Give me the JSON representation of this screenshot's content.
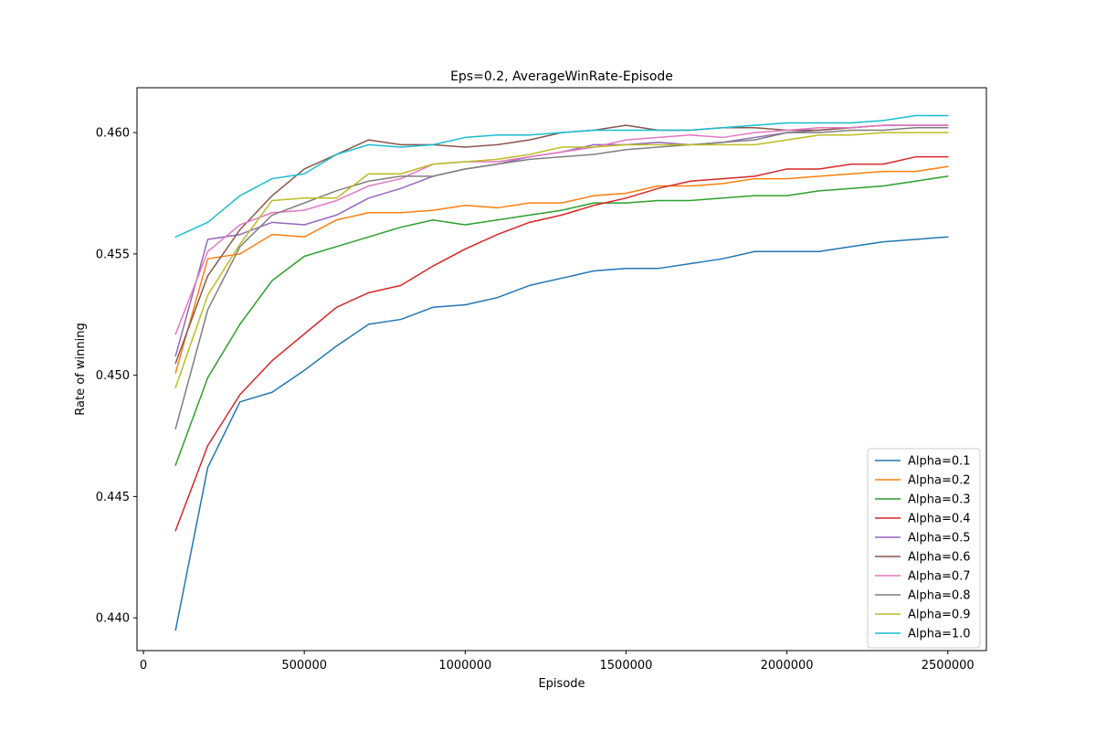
{
  "chart_data": {
    "type": "line",
    "title": "Eps=0.2, AverageWinRate-Episode",
    "xlabel": "Episode",
    "ylabel": "Rate of winning",
    "xlim": [
      -20000,
      2620000
    ],
    "ylim": [
      0.43865,
      0.46185
    ],
    "xticks": [
      0,
      500000,
      1000000,
      1500000,
      2000000,
      2500000
    ],
    "xtick_labels": [
      "0",
      "500000",
      "1000000",
      "1500000",
      "2000000",
      "2500000"
    ],
    "yticks": [
      0.44,
      0.445,
      0.45,
      0.455,
      0.46
    ],
    "ytick_labels": [
      "0.440",
      "0.445",
      "0.450",
      "0.455",
      "0.460"
    ],
    "grid": false,
    "legend_position": "lower right",
    "x": [
      100000,
      200000,
      300000,
      400000,
      500000,
      600000,
      700000,
      800000,
      900000,
      1000000,
      1100000,
      1200000,
      1300000,
      1400000,
      1500000,
      1600000,
      1700000,
      1800000,
      1900000,
      2000000,
      2100000,
      2200000,
      2300000,
      2400000,
      2500000
    ],
    "series": [
      {
        "name": "Alpha=0.1",
        "color": "#1f77b4",
        "values": [
          0.4395,
          0.4462,
          0.4489,
          0.4493,
          0.4502,
          0.4512,
          0.4521,
          0.4523,
          0.4528,
          0.4529,
          0.4532,
          0.4537,
          0.454,
          0.4543,
          0.4544,
          0.4544,
          0.4546,
          0.4548,
          0.4551,
          0.4551,
          0.4551,
          0.4553,
          0.4555,
          0.4556,
          0.4557
        ]
      },
      {
        "name": "Alpha=0.2",
        "color": "#ff7f0e",
        "values": [
          0.4501,
          0.4548,
          0.455,
          0.4558,
          0.4557,
          0.4564,
          0.4567,
          0.4567,
          0.4568,
          0.457,
          0.4569,
          0.4571,
          0.4571,
          0.4574,
          0.4575,
          0.4578,
          0.4578,
          0.4579,
          0.4581,
          0.4581,
          0.4582,
          0.4583,
          0.4584,
          0.4584,
          0.4586
        ]
      },
      {
        "name": "Alpha=0.3",
        "color": "#2ca02c",
        "values": [
          0.4463,
          0.4499,
          0.4521,
          0.4539,
          0.4549,
          0.4553,
          0.4557,
          0.4561,
          0.4564,
          0.4562,
          0.4564,
          0.4566,
          0.4568,
          0.4571,
          0.4571,
          0.4572,
          0.4572,
          0.4573,
          0.4574,
          0.4574,
          0.4576,
          0.4577,
          0.4578,
          0.458,
          0.4582
        ]
      },
      {
        "name": "Alpha=0.4",
        "color": "#d62728",
        "values": [
          0.4436,
          0.4471,
          0.4492,
          0.4506,
          0.4517,
          0.4528,
          0.4534,
          0.4537,
          0.4545,
          0.4552,
          0.4558,
          0.4563,
          0.4566,
          0.457,
          0.4573,
          0.4577,
          0.458,
          0.4581,
          0.4582,
          0.4585,
          0.4585,
          0.4587,
          0.4587,
          0.459,
          0.459
        ]
      },
      {
        "name": "Alpha=0.5",
        "color": "#9467bd",
        "values": [
          0.4508,
          0.4556,
          0.4558,
          0.4563,
          0.4562,
          0.4566,
          0.4573,
          0.4577,
          0.4582,
          0.4585,
          0.4587,
          0.459,
          0.4592,
          0.4595,
          0.4595,
          0.4596,
          0.4595,
          0.4596,
          0.4598,
          0.46,
          0.4601,
          0.4602,
          0.4603,
          0.4603,
          0.4603
        ]
      },
      {
        "name": "Alpha=0.6",
        "color": "#8c564b",
        "values": [
          0.4505,
          0.4541,
          0.456,
          0.4574,
          0.4585,
          0.4591,
          0.4597,
          0.4595,
          0.4595,
          0.4594,
          0.4595,
          0.4597,
          0.46,
          0.4601,
          0.4603,
          0.4601,
          0.4601,
          0.4602,
          0.4602,
          0.4601,
          0.4601,
          0.4602,
          0.4603,
          0.4603,
          0.4603
        ]
      },
      {
        "name": "Alpha=0.7",
        "color": "#e377c2",
        "values": [
          0.4517,
          0.4551,
          0.4562,
          0.4567,
          0.4568,
          0.4572,
          0.4578,
          0.4581,
          0.4587,
          0.4588,
          0.4588,
          0.459,
          0.4592,
          0.4594,
          0.4597,
          0.4598,
          0.4599,
          0.4598,
          0.46,
          0.4601,
          0.4602,
          0.4602,
          0.4603,
          0.4603,
          0.4603
        ]
      },
      {
        "name": "Alpha=0.8",
        "color": "#7f7f7f",
        "values": [
          0.4478,
          0.4527,
          0.4553,
          0.4566,
          0.4571,
          0.4576,
          0.458,
          0.4582,
          0.4582,
          0.4585,
          0.4587,
          0.4589,
          0.459,
          0.4591,
          0.4593,
          0.4594,
          0.4595,
          0.4596,
          0.4597,
          0.46,
          0.46,
          0.4601,
          0.4601,
          0.4602,
          0.4602
        ]
      },
      {
        "name": "Alpha=0.9",
        "color": "#bcbd22",
        "values": [
          0.4495,
          0.4533,
          0.4554,
          0.4572,
          0.4573,
          0.4573,
          0.4583,
          0.4583,
          0.4587,
          0.4588,
          0.4589,
          0.4591,
          0.4594,
          0.4594,
          0.4595,
          0.4595,
          0.4595,
          0.4595,
          0.4595,
          0.4597,
          0.4599,
          0.4599,
          0.46,
          0.46,
          0.46
        ]
      },
      {
        "name": "Alpha=1.0",
        "color": "#17becf",
        "values": [
          0.4557,
          0.4563,
          0.4574,
          0.4581,
          0.4583,
          0.4591,
          0.4595,
          0.4594,
          0.4595,
          0.4598,
          0.4599,
          0.4599,
          0.46,
          0.4601,
          0.4601,
          0.4601,
          0.4601,
          0.4602,
          0.4603,
          0.4604,
          0.4604,
          0.4604,
          0.4605,
          0.4607,
          0.4607
        ]
      }
    ]
  }
}
